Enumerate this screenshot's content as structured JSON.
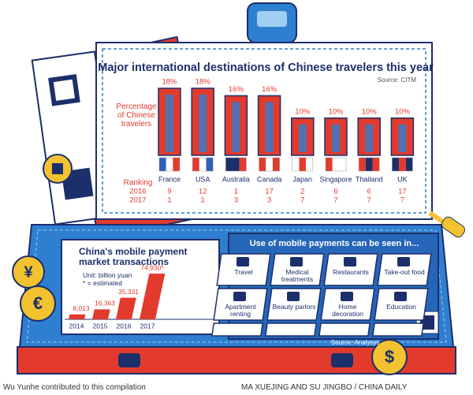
{
  "chart_data": [
    {
      "type": "bar",
      "title": "Major international destinations of Chinese travelers this year",
      "source": "Source: CITM",
      "y_label": "Percentage of Chinese travelers",
      "categories": [
        "France",
        "USA",
        "Australia",
        "Canada",
        "Japan",
        "Singapore",
        "Thailand",
        "UK"
      ],
      "values": [
        18,
        18,
        16,
        16,
        10,
        10,
        10,
        10
      ],
      "value_labels": [
        "18%",
        "18%",
        "16%",
        "16%",
        "10%",
        "10%",
        "10%",
        "10%"
      ],
      "color": "#e23b2e",
      "ranking_label": "Ranking",
      "ranking": [
        {
          "name": "2016",
          "values": [
            9,
            12,
            1,
            17,
            2,
            6,
            6,
            17
          ]
        },
        {
          "name": "2017",
          "values": [
            1,
            1,
            3,
            3,
            7,
            7,
            7,
            7
          ]
        }
      ]
    },
    {
      "type": "bar",
      "title": "China's mobile payment market transactions",
      "subtitle": "Unit: billion yuan",
      "note": "* = estimated",
      "categories": [
        "2014",
        "2015",
        "2016",
        "2017"
      ],
      "values": [
        8013,
        16363,
        35331,
        74930
      ],
      "value_labels": [
        "8,013",
        "16,363",
        "35,331",
        "74,930*"
      ],
      "color": "#e23b2e"
    }
  ],
  "uses": {
    "title": "Use of mobile payments can be seen in...",
    "items": [
      "Travel",
      "Medical treatments",
      "Restaurants",
      "Take-out food",
      "Apartment renting",
      "Beauty parlors",
      "Home decoration",
      "Education"
    ],
    "source": "Source: Analysys"
  },
  "coins": [
    "¥",
    "€",
    "$"
  ],
  "credits": {
    "left": "Wu Yunhe contributed to this compilation",
    "right": "MA XUEJING AND SU JINGBO / CHINA DAILY"
  }
}
